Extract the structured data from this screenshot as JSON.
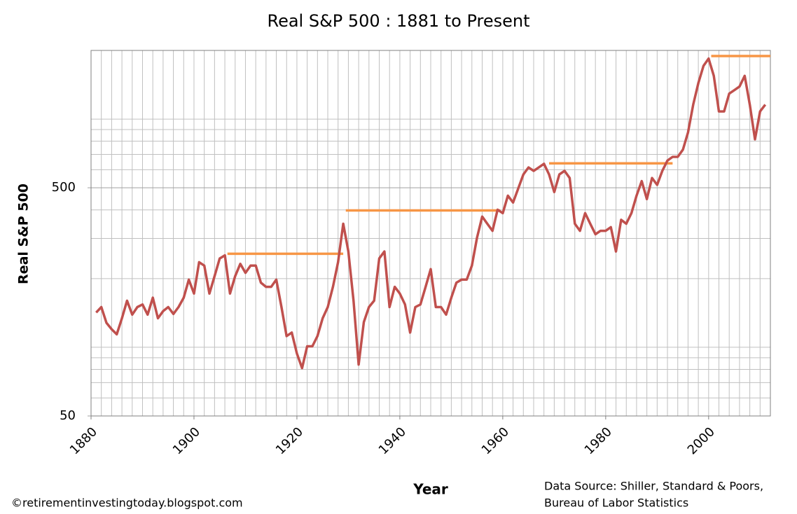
{
  "chart_data": {
    "type": "line",
    "title": "Real S&P 500 : 1881 to Present",
    "y_label": "Real S&P 500",
    "x_label": "Year",
    "footnote": "©retirementinvestingtoday.blogspot.com",
    "source": [
      "Data Source: Shiller, Standard & Poors,",
      "Bureau of Labor Statistics"
    ],
    "log_y": true,
    "grid": true,
    "xlim": [
      1880,
      2012
    ],
    "ylim": [
      50,
      2000
    ],
    "xticks": [
      1880,
      1900,
      1920,
      1940,
      1960,
      1980,
      2000
    ],
    "yticks": [
      50,
      500
    ],
    "xgrid": [
      1880,
      1882,
      1884,
      1886,
      1888,
      1890,
      1892,
      1894,
      1896,
      1898,
      1900,
      1902,
      1904,
      1906,
      1908,
      1910,
      1912,
      1914,
      1916,
      1918,
      1920,
      1922,
      1924,
      1926,
      1928,
      1930,
      1932,
      1934,
      1936,
      1938,
      1940,
      1942,
      1944,
      1946,
      1948,
      1950,
      1952,
      1954,
      1956,
      1958,
      1960,
      1962,
      1964,
      1966,
      1968,
      1970,
      1972,
      1974,
      1976,
      1978,
      1980,
      1982,
      1984,
      1986,
      1988,
      1990,
      1992,
      1994,
      1996,
      1998,
      2000,
      2002,
      2004,
      2006,
      2008,
      2010,
      2012
    ],
    "ygrid": [
      60,
      70,
      80,
      90,
      100,
      200,
      300,
      400,
      600,
      700,
      800,
      900,
      1000,
      2000
    ],
    "x": [
      1881,
      1882,
      1883,
      1884,
      1885,
      1886,
      1887,
      1888,
      1889,
      1890,
      1891,
      1892,
      1893,
      1894,
      1895,
      1896,
      1897,
      1898,
      1899,
      1900,
      1901,
      1902,
      1903,
      1904,
      1905,
      1906,
      1907,
      1908,
      1909,
      1910,
      1911,
      1912,
      1913,
      1914,
      1915,
      1916,
      1917,
      1918,
      1919,
      1920,
      1921,
      1922,
      1923,
      1924,
      1925,
      1926,
      1927,
      1928,
      1929,
      1930,
      1931,
      1932,
      1933,
      1934,
      1935,
      1936,
      1937,
      1938,
      1939,
      1940,
      1941,
      1942,
      1943,
      1944,
      1945,
      1946,
      1947,
      1948,
      1949,
      1950,
      1951,
      1952,
      1953,
      1954,
      1955,
      1956,
      1957,
      1958,
      1959,
      1960,
      1961,
      1962,
      1963,
      1964,
      1965,
      1966,
      1967,
      1968,
      1969,
      1970,
      1971,
      1972,
      1973,
      1974,
      1975,
      1976,
      1977,
      1978,
      1979,
      1980,
      1981,
      1982,
      1983,
      1984,
      1985,
      1986,
      1987,
      1988,
      1989,
      1990,
      1991,
      1992,
      1993,
      1994,
      1995,
      1996,
      1997,
      1998,
      1999,
      2000,
      2001,
      2002,
      2003,
      2004,
      2005,
      2006,
      2007,
      2008,
      2009,
      2010,
      2011
    ],
    "values": [
      142,
      150,
      128,
      120,
      114,
      134,
      160,
      139,
      150,
      154,
      139,
      165,
      134,
      144,
      150,
      140,
      150,
      165,
      198,
      172,
      236,
      228,
      172,
      205,
      245,
      253,
      172,
      205,
      232,
      212,
      228,
      228,
      192,
      184,
      184,
      198,
      150,
      112,
      116,
      94,
      81,
      101,
      101,
      112,
      134,
      150,
      184,
      236,
      348,
      263,
      160,
      84,
      129,
      150,
      160,
      245,
      263,
      150,
      184,
      172,
      154,
      116,
      150,
      154,
      184,
      220,
      150,
      150,
      139,
      165,
      192,
      198,
      198,
      228,
      302,
      374,
      348,
      324,
      401,
      387,
      462,
      431,
      496,
      572,
      614,
      593,
      614,
      637,
      572,
      479,
      572,
      593,
      552,
      348,
      324,
      387,
      348,
      313,
      324,
      324,
      336,
      263,
      362,
      348,
      387,
      462,
      535,
      446,
      552,
      515,
      593,
      658,
      683,
      683,
      735,
      874,
      1157,
      1437,
      1712,
      1842,
      1548,
      1081,
      1081,
      1293,
      1340,
      1389,
      1548,
      1157,
      815,
      1081,
      1157
    ],
    "color": "#c0504d",
    "reference_lines": [
      {
        "x": [
          1906.5,
          1929
        ],
        "value": 257
      },
      {
        "x": [
          1929.5,
          1959.5
        ],
        "value": 398
      },
      {
        "x": [
          1969,
          1993
        ],
        "value": 640
      },
      {
        "x": [
          2000.5,
          2012
        ],
        "value": 1890
      }
    ],
    "reference_color": "#f79646"
  }
}
